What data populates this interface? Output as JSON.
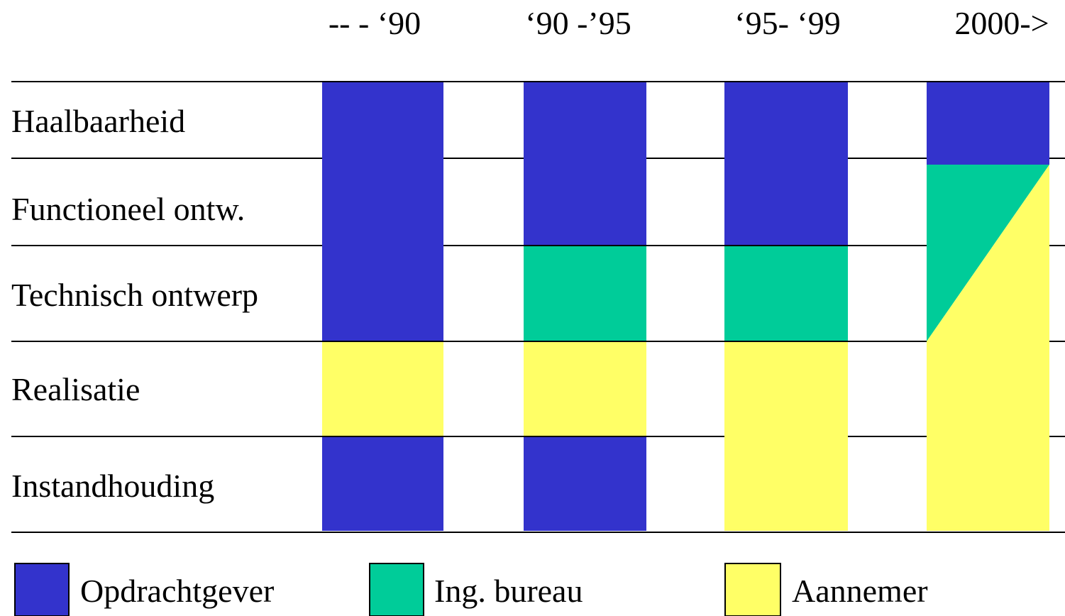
{
  "diagram": {
    "columns": [
      "-- - ‘90",
      "‘90 -’95",
      "‘95- ‘99",
      "2000->"
    ],
    "rows": [
      "Haalbaarheid",
      "Functioneel ontw.",
      "Technisch ontwerp",
      "Realisatie",
      "Instandhouding"
    ],
    "parties": {
      "opdrachtgever": {
        "label": "Opdrachtgever",
        "color": "#3333cc"
      },
      "ingbureau": {
        "label": "Ing. bureau",
        "color": "#00cc99"
      },
      "aannemer": {
        "label": "Aannemer",
        "color": "#ffff66"
      }
    },
    "assignments": [
      [
        "opdrachtgever",
        "opdrachtgever",
        "opdrachtgever",
        "opdrachtgever"
      ],
      [
        "opdrachtgever",
        "opdrachtgever",
        "opdrachtgever",
        "opdrachtgever/ingbureau/aannemer"
      ],
      [
        "opdrachtgever",
        "ingbureau",
        "ingbureau",
        "ingbureau/aannemer"
      ],
      [
        "aannemer",
        "aannemer",
        "aannemer",
        "aannemer"
      ],
      [
        "opdrachtgever",
        "opdrachtgever",
        "aannemer",
        "aannemer"
      ]
    ],
    "legend_order": [
      "opdrachtgever",
      "ingbureau",
      "aannemer"
    ]
  }
}
